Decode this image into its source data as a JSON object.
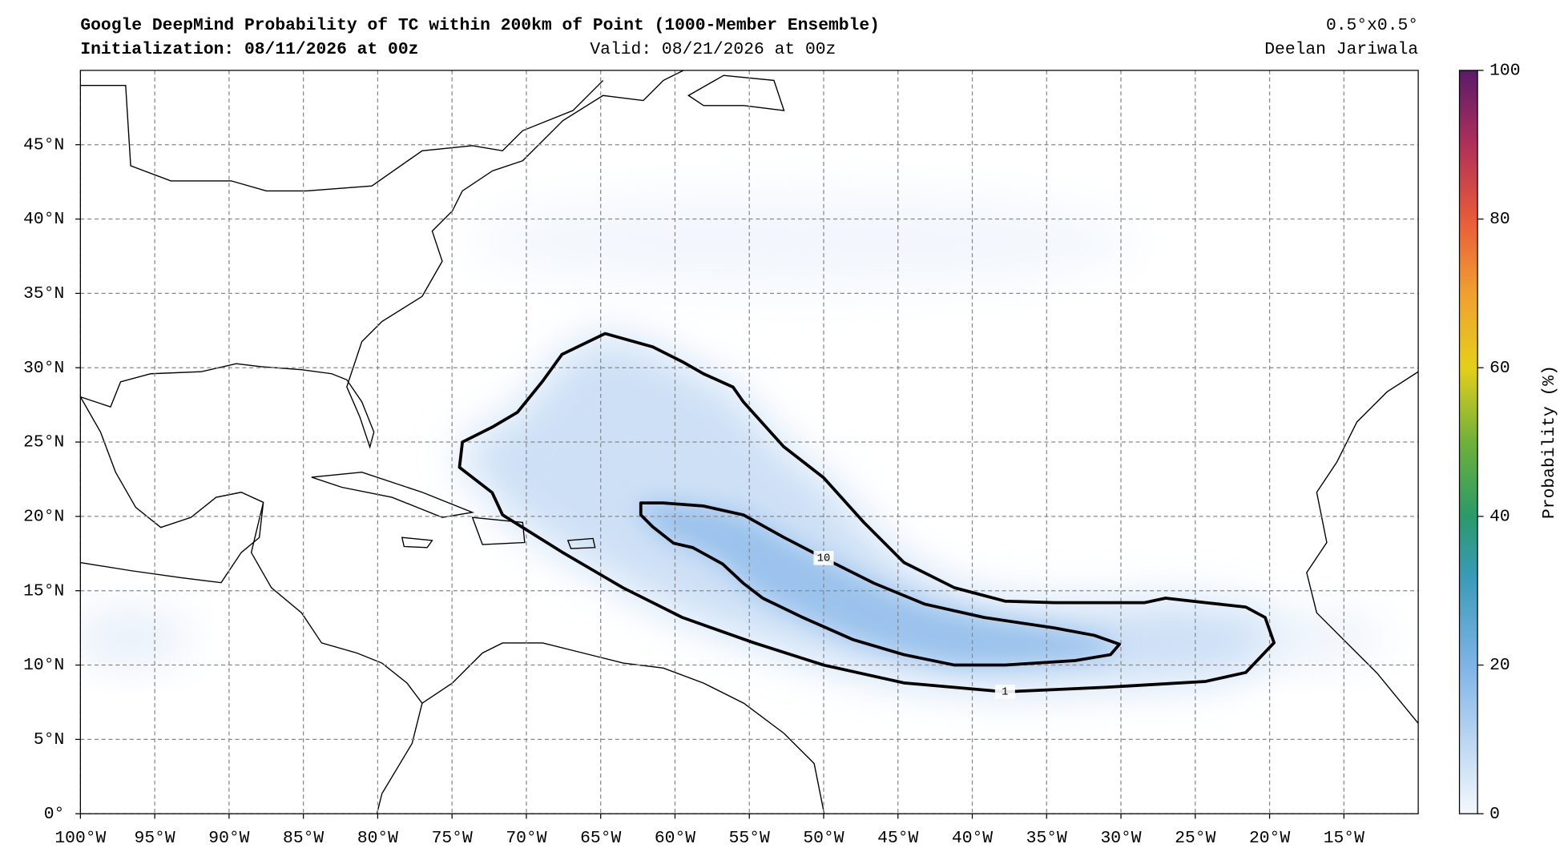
{
  "map": {
    "title": "Google DeepMind Probability of TC within 200km of Point (1000-Member Ensemble)",
    "init": "Initialization: 08/11/2026 at 00z",
    "valid": "Valid: 08/21/2026 at 00z",
    "resolution": "0.5°x0.5°",
    "author": "Deelan Jariwala",
    "lonlim": [
      -100,
      -10
    ],
    "latlim": [
      0,
      50
    ],
    "lonticks": [
      {
        "value": -100,
        "label": "100°W"
      },
      {
        "value": -95,
        "label": "95°W"
      },
      {
        "value": -90,
        "label": "90°W"
      },
      {
        "value": -85,
        "label": "85°W"
      },
      {
        "value": -80,
        "label": "80°W"
      },
      {
        "value": -75,
        "label": "75°W"
      },
      {
        "value": -70,
        "label": "70°W"
      },
      {
        "value": -65,
        "label": "65°W"
      },
      {
        "value": -60,
        "label": "60°W"
      },
      {
        "value": -55,
        "label": "55°W"
      },
      {
        "value": -50,
        "label": "50°W"
      },
      {
        "value": -45,
        "label": "45°W"
      },
      {
        "value": -40,
        "label": "40°W"
      },
      {
        "value": -35,
        "label": "35°W"
      },
      {
        "value": -30,
        "label": "30°W"
      },
      {
        "value": -25,
        "label": "25°W"
      },
      {
        "value": -20,
        "label": "20°W"
      },
      {
        "value": -15,
        "label": "15°W"
      }
    ],
    "latticks": [
      {
        "value": 0,
        "label": "0°"
      },
      {
        "value": 5,
        "label": "5°N"
      },
      {
        "value": 10,
        "label": "10°N"
      },
      {
        "value": 15,
        "label": "15°N"
      },
      {
        "value": 20,
        "label": "20°N"
      },
      {
        "value": 25,
        "label": "25°N"
      },
      {
        "value": 30,
        "label": "30°N"
      },
      {
        "value": 35,
        "label": "35°N"
      },
      {
        "value": 40,
        "label": "40°N"
      },
      {
        "value": 45,
        "label": "45°N"
      }
    ],
    "contours": [
      {
        "level": 1,
        "lon": [
          -64.7,
          -67.6,
          -68.9,
          -70.6,
          -72.3,
          -74.3,
          -74.5,
          -72.3,
          -71.6,
          -67.6,
          -63.5,
          -59.5,
          -54.7,
          -50.0,
          -44.6,
          -37.8,
          -31.1,
          -24.3,
          -21.6,
          -19.7,
          -20.3,
          -21.6,
          -24.3,
          -27.0,
          -28.4,
          -34.5,
          -37.8,
          -41.2,
          -44.6,
          -47.3,
          -50.0,
          -52.7,
          -55.4,
          -56.1,
          -58.1,
          -59.5,
          -61.5
        ],
        "lat": [
          32.3,
          30.9,
          29.1,
          27.0,
          26.0,
          25.0,
          23.3,
          21.6,
          20.1,
          17.6,
          15.2,
          13.2,
          11.5,
          10.0,
          8.8,
          8.2,
          8.5,
          8.9,
          9.5,
          11.5,
          13.2,
          13.9,
          14.2,
          14.5,
          14.2,
          14.2,
          14.3,
          15.2,
          16.9,
          19.6,
          22.6,
          24.7,
          27.7,
          28.7,
          29.6,
          30.4,
          31.4
        ]
      },
      {
        "level": 10,
        "lon": [
          -62.3,
          -60.8,
          -58.1,
          -55.4,
          -52.7,
          -50.0,
          -46.6,
          -43.2,
          -39.2,
          -34.5,
          -31.8,
          -30.1,
          -30.7,
          -33.1,
          -37.8,
          -41.2,
          -44.6,
          -48.0,
          -51.4,
          -54.1,
          -55.4,
          -56.8,
          -58.8,
          -60.1,
          -61.5,
          -62.3
        ],
        "lat": [
          20.9,
          20.9,
          20.7,
          20.1,
          18.6,
          17.2,
          15.5,
          14.1,
          13.2,
          12.5,
          12.0,
          11.4,
          10.7,
          10.3,
          10.0,
          10.0,
          10.7,
          11.7,
          13.2,
          14.5,
          15.5,
          16.8,
          17.9,
          18.2,
          19.3,
          20.1
        ]
      }
    ],
    "colorbar": {
      "label": "Probability (%)",
      "lim": [
        0,
        100
      ],
      "ticks": [
        0,
        20,
        40,
        60,
        80,
        100
      ]
    }
  }
}
